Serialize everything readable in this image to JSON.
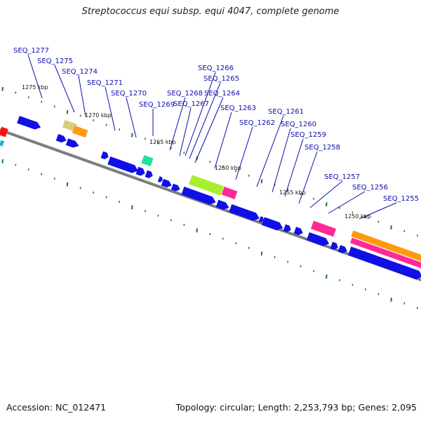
{
  "title": "Streptococcus equi subsp. equi 4047, complete genome",
  "footer": {
    "accession": "Accession: NC_012471",
    "summary": "Topology: circular; Length: 2,253,793 bp; Genes: 2,095"
  },
  "colors": {
    "backbone": "#7a7a7a",
    "gene_forward": "#1010e6",
    "label": "#0d0daa",
    "tick": "#1a7a1a"
  },
  "kbp_labels": [
    "1275 kbp",
    "1270 kbp",
    "1265 kbp",
    "1260 kbp",
    "1255 kbp",
    "1250 kbp"
  ],
  "gene_labels": [
    "SEQ_1277",
    "SEQ_1275",
    "SEQ_1274",
    "SEQ_1271",
    "SEQ_1270",
    "SEQ_1269",
    "SEQ_1268",
    "SEQ_1267",
    "SEQ_1266",
    "SEQ_1265",
    "SEQ_1264",
    "SEQ_1263",
    "SEQ_1262",
    "SEQ_1261",
    "SEQ_1260",
    "SEQ_1259",
    "SEQ_1258",
    "SEQ_1257",
    "SEQ_1256",
    "SEQ_1255"
  ]
}
